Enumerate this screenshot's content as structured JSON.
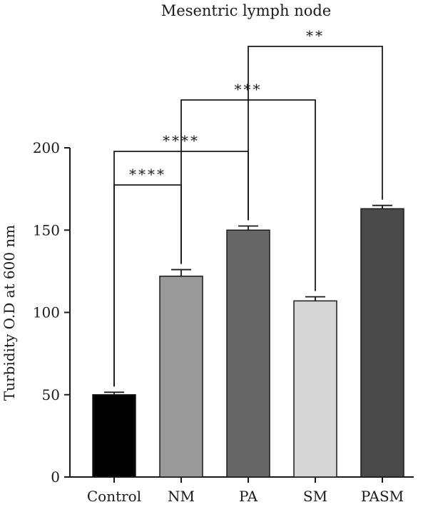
{
  "chart_data": {
    "type": "bar",
    "title": "Mesentric lymph node",
    "xlabel": "",
    "ylabel": "Turbidity O.D at 600 nm",
    "ylim": [
      0,
      200
    ],
    "yticks": [
      0,
      50,
      100,
      150,
      200
    ],
    "categories": [
      "Control",
      "NM",
      "PA",
      "SM",
      "PASM"
    ],
    "values": [
      50,
      122,
      150,
      107,
      163
    ],
    "errors": [
      1.5,
      4,
      2.5,
      2.5,
      2
    ],
    "colors": [
      "#000000",
      "#9a9a9a",
      "#666666",
      "#d6d6d6",
      "#4a4a4a"
    ],
    "significance": [
      {
        "from": "Control",
        "to": "NM",
        "label": "****"
      },
      {
        "from": "Control",
        "to": "PA",
        "label": "****"
      },
      {
        "from": "NM",
        "to": "SM",
        "label": "***"
      },
      {
        "from": "PA",
        "to": "PASM",
        "label": "**"
      }
    ],
    "grid": false,
    "legend": "none"
  }
}
